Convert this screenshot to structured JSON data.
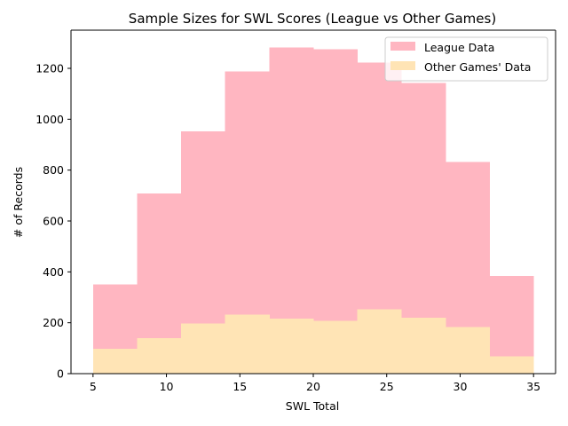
{
  "chart_data": {
    "type": "bar",
    "title": "Sample Sizes for SWL Scores (League vs Other Games)",
    "xlabel": "SWL Total",
    "ylabel": "# of Records",
    "xlim": [
      3.5,
      36.5
    ],
    "ylim": [
      0,
      1350
    ],
    "xticks": [
      5,
      10,
      15,
      20,
      25,
      30,
      35
    ],
    "yticks": [
      0,
      200,
      400,
      600,
      800,
      1000,
      1200
    ],
    "bin_edges": [
      5,
      8,
      11,
      14,
      17,
      20,
      23,
      26,
      29,
      32,
      35
    ],
    "legend_position": "upper right",
    "grid": false,
    "series": [
      {
        "name": "League Data",
        "color": "#FFB6C1",
        "values": [
          350,
          708,
          952,
          1187,
          1282,
          1275,
          1222,
          1142,
          832,
          383
        ]
      },
      {
        "name": "Other Games' Data",
        "color": "#FFE4B5",
        "values": [
          98,
          140,
          197,
          232,
          216,
          208,
          253,
          219,
          184,
          68
        ]
      }
    ]
  }
}
